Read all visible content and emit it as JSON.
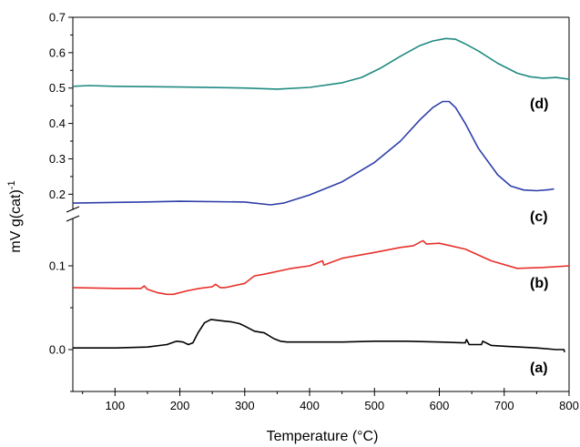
{
  "chart_data": {
    "type": "line",
    "xlabel": "Temperature (°C)",
    "ylabel": "mV g(cat)",
    "ylabel_superscript": "-1",
    "xlim": [
      35,
      800
    ],
    "x_ticks": [
      100,
      200,
      300,
      400,
      500,
      600,
      700,
      800
    ],
    "axis_break": "y-axis break between 0.15 and 0.17",
    "lower_segment": {
      "ylim": [
        -0.05,
        0.15
      ],
      "y_ticks": [
        0.0,
        0.1
      ]
    },
    "upper_segment": {
      "ylim": [
        0.17,
        0.7
      ],
      "y_ticks": [
        0.2,
        0.3,
        0.4,
        0.5,
        0.6,
        0.7
      ]
    },
    "grid": false,
    "series": [
      {
        "name": "(a)",
        "segment": "lower",
        "color": "#000000",
        "x": [
          35,
          100,
          150,
          180,
          195,
          205,
          213,
          220,
          228,
          238,
          248,
          258,
          268,
          280,
          292,
          300,
          315,
          330,
          345,
          355,
          365,
          400,
          450,
          500,
          550,
          600,
          640,
          642,
          646,
          665,
          667,
          680,
          700,
          750,
          780,
          792,
          793
        ],
        "y": [
          0.002,
          0.002,
          0.003,
          0.006,
          0.01,
          0.009,
          0.006,
          0.008,
          0.02,
          0.032,
          0.036,
          0.035,
          0.034,
          0.033,
          0.031,
          0.028,
          0.022,
          0.02,
          0.013,
          0.01,
          0.009,
          0.009,
          0.009,
          0.01,
          0.01,
          0.009,
          0.008,
          0.012,
          0.006,
          0.006,
          0.01,
          0.005,
          0.004,
          0.002,
          0.0,
          0.0,
          -0.003
        ]
      },
      {
        "name": "(b)",
        "segment": "lower",
        "color": "#e8302a",
        "x": [
          35,
          100,
          140,
          145,
          150,
          165,
          180,
          190,
          210,
          230,
          250,
          255,
          262,
          270,
          300,
          315,
          330,
          360,
          372,
          400,
          420,
          422,
          450,
          500,
          540,
          560,
          572,
          575,
          580,
          600,
          640,
          680,
          720,
          760,
          800
        ],
        "y": [
          0.074,
          0.073,
          0.073,
          0.076,
          0.072,
          0.068,
          0.066,
          0.066,
          0.07,
          0.073,
          0.075,
          0.078,
          0.074,
          0.074,
          0.079,
          0.088,
          0.09,
          0.095,
          0.097,
          0.1,
          0.106,
          0.101,
          0.109,
          0.116,
          0.122,
          0.124,
          0.129,
          0.13,
          0.126,
          0.127,
          0.12,
          0.106,
          0.097,
          0.098,
          0.1
        ]
      },
      {
        "name": "(c)",
        "segment": "upper",
        "color": "#2e3ea8",
        "x": [
          35,
          70,
          140,
          200,
          300,
          340,
          360,
          400,
          450,
          500,
          540,
          570,
          590,
          605,
          615,
          625,
          640,
          660,
          690,
          710,
          730,
          750,
          770,
          777
        ],
        "y": [
          0.175,
          0.176,
          0.178,
          0.18,
          0.178,
          0.17,
          0.175,
          0.198,
          0.235,
          0.29,
          0.35,
          0.41,
          0.445,
          0.462,
          0.462,
          0.445,
          0.4,
          0.33,
          0.255,
          0.223,
          0.212,
          0.21,
          0.213,
          0.215
        ]
      },
      {
        "name": "(d)",
        "segment": "upper",
        "color": "#1e8a80",
        "x": [
          35,
          60,
          100,
          200,
          300,
          350,
          400,
          450,
          480,
          510,
          540,
          570,
          590,
          610,
          625,
          640,
          660,
          690,
          720,
          740,
          760,
          780,
          800
        ],
        "y": [
          0.505,
          0.507,
          0.505,
          0.503,
          0.5,
          0.497,
          0.502,
          0.515,
          0.53,
          0.557,
          0.59,
          0.62,
          0.633,
          0.64,
          0.638,
          0.625,
          0.605,
          0.57,
          0.542,
          0.532,
          0.528,
          0.53,
          0.525
        ]
      }
    ],
    "curve_labels": [
      "(d)",
      "(c)",
      "(b)",
      "(a)"
    ],
    "colors": {
      "axis": "#000000"
    }
  }
}
